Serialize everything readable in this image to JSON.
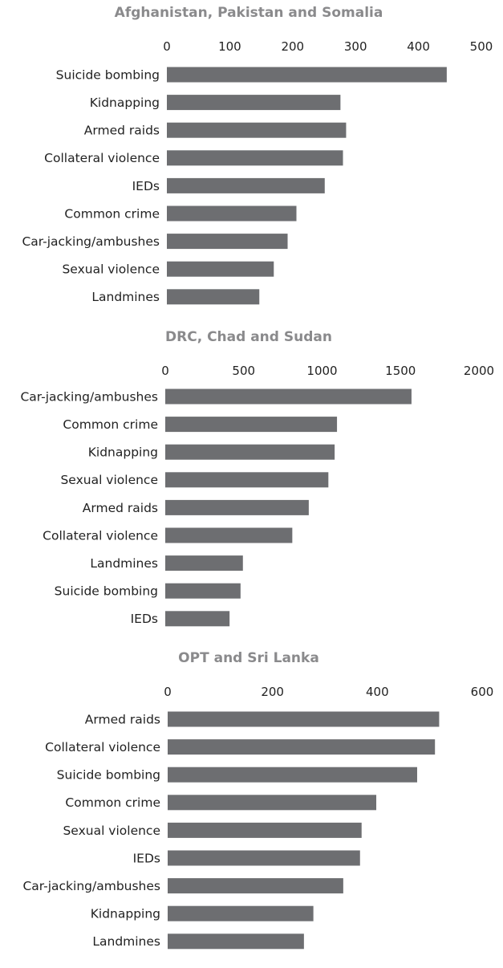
{
  "chart_data": [
    {
      "type": "bar",
      "orientation": "horizontal",
      "title": "Afghanistan, Pakistan and Somalia",
      "categories": [
        "Suicide bombing",
        "Kidnapping",
        "Armed raids",
        "Collateral violence",
        "IEDs",
        "Common crime",
        "Car-jacking/ambushes",
        "Sexual violence",
        "Landmines"
      ],
      "values": [
        445,
        276,
        285,
        280,
        251,
        206,
        192,
        170,
        147
      ],
      "xlim": [
        0,
        500
      ],
      "ticks": [
        "0",
        "100",
        "200",
        "300",
        "400",
        "500"
      ],
      "tick_values": [
        0,
        100,
        200,
        300,
        400,
        500
      ],
      "axis_position": "top",
      "grid": false,
      "color": "#6d6e71"
    },
    {
      "type": "bar",
      "orientation": "horizontal",
      "title": "DRC, Chad and Sudan",
      "categories": [
        "Car-jacking/ambushes",
        "Common crime",
        "Kidnapping",
        "Sexual violence",
        "Armed raids",
        "Collateral violence",
        "Landmines",
        "Suicide bombing",
        "IEDs"
      ],
      "values": [
        1570,
        1095,
        1080,
        1040,
        915,
        810,
        495,
        480,
        410
      ],
      "xlim": [
        0,
        2000
      ],
      "ticks": [
        "0",
        "500",
        "1000",
        "1500",
        "2000"
      ],
      "tick_values": [
        0,
        500,
        1000,
        1500,
        2000
      ],
      "axis_position": "top",
      "grid": false,
      "color": "#6d6e71"
    },
    {
      "type": "bar",
      "orientation": "horizontal",
      "title": "OPT and Sri Lanka",
      "categories": [
        "Armed raids",
        "Collateral violence",
        "Suicide bombing",
        "Common crime",
        "Sexual violence",
        "IEDs",
        "Car-jacking/ambushes",
        "Kidnapping",
        "Landmines"
      ],
      "values": [
        518,
        510,
        476,
        398,
        370,
        367,
        335,
        278,
        260
      ],
      "xlim": [
        0,
        600
      ],
      "ticks": [
        "0",
        "200",
        "400",
        "600"
      ],
      "tick_values": [
        0,
        200,
        400,
        600
      ],
      "axis_position": "top",
      "grid": false,
      "color": "#6d6e71"
    }
  ]
}
